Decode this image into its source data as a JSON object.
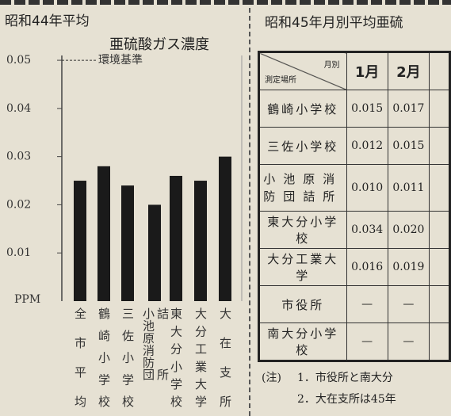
{
  "heading": "昭和44年平均",
  "chart_data": {
    "type": "bar",
    "title": "亜硫酸ガス濃度",
    "ylabel": "PPM",
    "categories": [
      "全市平均",
      "鶴崎小学校",
      "三佐小学校",
      "小池原消防団詰所",
      "東大分小学校",
      "大分工業大学",
      "大在支所"
    ],
    "values": [
      0.025,
      0.028,
      0.024,
      0.02,
      0.026,
      0.025,
      0.03
    ],
    "color": "#1a1a1a",
    "ylim": [
      0,
      0.051
    ],
    "yticks": [
      0.01,
      0.02,
      0.03,
      0.04,
      0.05
    ],
    "grid": false,
    "annotations": [
      {
        "label": "環境基準",
        "value": 0.05
      }
    ]
  },
  "table": {
    "title": "昭和45年月別平均亜硫",
    "corner": [
      "月別",
      "測定場所"
    ],
    "columns": [
      "1月",
      "2月"
    ],
    "rows": [
      [
        "鶴崎小学校",
        "0.015",
        "0.017"
      ],
      [
        "三佐小学校",
        "0.012",
        "0.015"
      ],
      [
        "小池原消防団詰所",
        "0.010",
        "0.011"
      ],
      [
        "東大分小学校",
        "0.034",
        "0.020"
      ],
      [
        "大分工業大学",
        "0.016",
        "0.019"
      ],
      [
        "市役所",
        "—",
        "—"
      ],
      [
        "南大分小学校",
        "—",
        "—"
      ]
    ]
  },
  "notes": {
    "label": "(注)",
    "items": [
      "1．市役所と南大分",
      "2．大在支所は45年"
    ]
  }
}
